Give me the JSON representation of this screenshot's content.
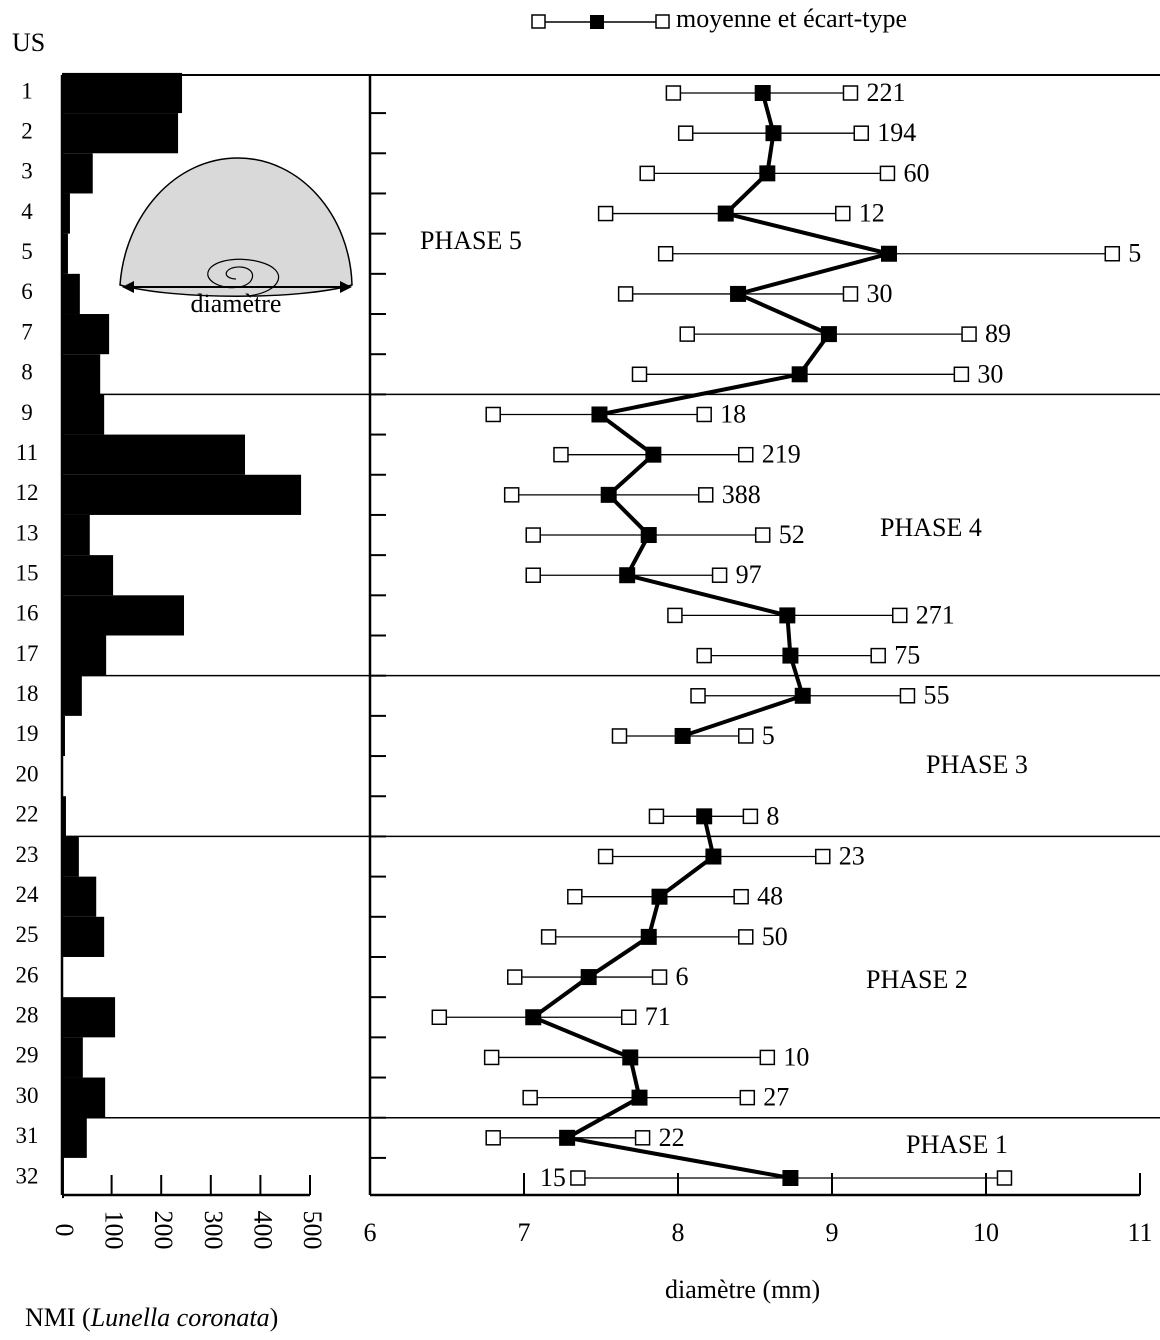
{
  "chart_data": [
    {
      "type": "bar",
      "y_label": "US",
      "categories": [
        "1",
        "2",
        "3",
        "4",
        "5",
        "6",
        "7",
        "8",
        "9",
        "11",
        "12",
        "13",
        "15",
        "16",
        "17",
        "18",
        "19",
        "20",
        "22",
        "23",
        "24",
        "25",
        "26",
        "28",
        "29",
        "30",
        "31",
        "32"
      ],
      "values": [
        242,
        234,
        62,
        16,
        12,
        36,
        95,
        77,
        85,
        369,
        482,
        56,
        103,
        246,
        89,
        40,
        6,
        2,
        8,
        34,
        69,
        85,
        2,
        107,
        42,
        87,
        50,
        4
      ],
      "color": "#000000",
      "xlim": [
        0,
        500
      ],
      "xticks": [
        0,
        100,
        200,
        300,
        400,
        500
      ],
      "x_label": [
        "NMI (",
        "Lunella coronata",
        ")"
      ],
      "annotation": "diamètre"
    },
    {
      "type": "errorbar",
      "legend": "moyenne et écart-type",
      "values": [
        8.55,
        8.62,
        8.58,
        8.31,
        9.37,
        8.39,
        8.98,
        8.79,
        7.49,
        7.84,
        7.55,
        7.81,
        7.67,
        8.71,
        8.73,
        8.81,
        8.03,
        null,
        8.17,
        8.23,
        7.88,
        7.81,
        7.42,
        7.06,
        7.69,
        7.75,
        7.28,
        8.73
      ],
      "low": [
        7.97,
        8.05,
        7.8,
        7.53,
        7.92,
        7.66,
        8.06,
        7.75,
        6.8,
        7.24,
        6.92,
        7.06,
        7.06,
        7.98,
        8.17,
        8.13,
        7.62,
        null,
        7.86,
        7.53,
        7.33,
        7.16,
        6.94,
        6.45,
        6.79,
        7.04,
        6.8,
        7.35
      ],
      "high": [
        9.12,
        9.19,
        9.36,
        9.07,
        10.82,
        9.12,
        9.89,
        9.84,
        8.17,
        8.44,
        8.18,
        8.55,
        8.27,
        9.44,
        9.3,
        9.49,
        8.44,
        null,
        8.47,
        8.94,
        8.41,
        8.44,
        7.88,
        7.68,
        8.58,
        8.45,
        7.77,
        10.12
      ],
      "n": [
        221,
        194,
        60,
        12,
        5,
        30,
        89,
        30,
        18,
        219,
        388,
        52,
        97,
        271,
        75,
        55,
        5,
        null,
        8,
        23,
        48,
        50,
        6,
        71,
        10,
        27,
        22,
        15
      ],
      "color": "#000000",
      "xlim": [
        6,
        11
      ],
      "xticks": [
        6,
        7,
        8,
        9,
        10,
        11
      ],
      "x_label": "diamètre (mm)",
      "phases": [
        {
          "label": "PHASE 5",
          "first": "1",
          "last": "8"
        },
        {
          "label": "PHASE 4",
          "first": "9",
          "last": "17"
        },
        {
          "label": "PHASE 3",
          "first": "18",
          "last": "22"
        },
        {
          "label": "PHASE 2",
          "first": "23",
          "last": "30"
        },
        {
          "label": "PHASE 1",
          "first": "31",
          "last": "32"
        }
      ]
    }
  ]
}
